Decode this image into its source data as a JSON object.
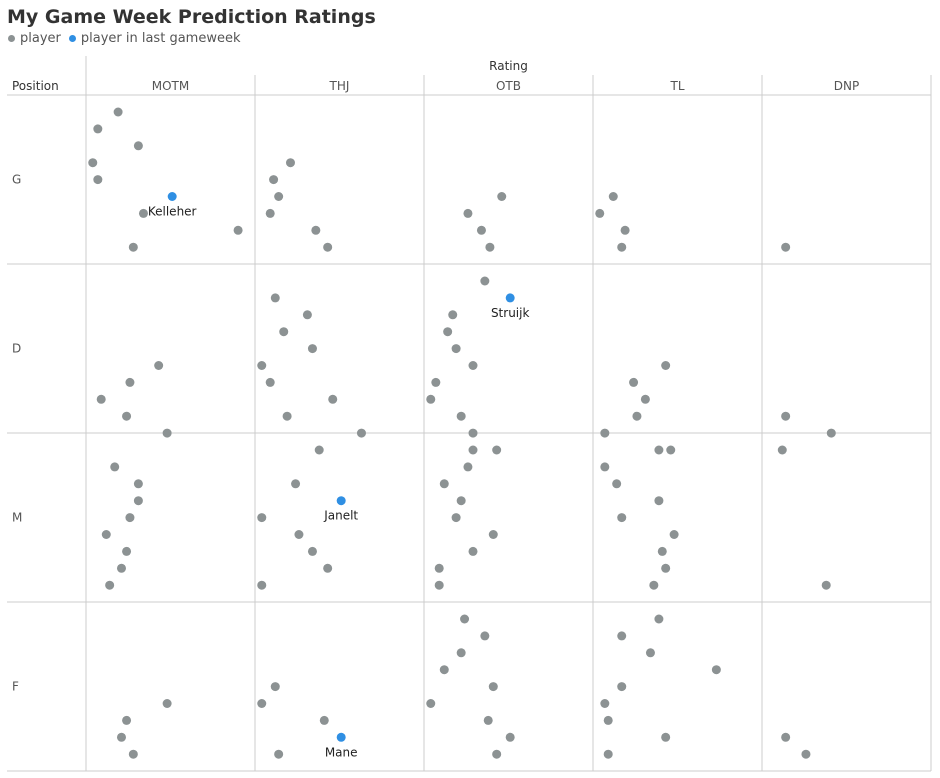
{
  "colors": {
    "player": "#8c9293",
    "last_gameweek": "#2f8fe3",
    "grid": "#cccccc",
    "label": "#555555",
    "title": "#333333"
  },
  "chart_data": {
    "type": "scatter",
    "title": "My Game Week Prediction Ratings",
    "legend": {
      "placement": "top-left",
      "entries": [
        {
          "label": "player",
          "color": "#8c9293"
        },
        {
          "label": "player in last gameweek",
          "color": "#2f8fe3"
        }
      ]
    },
    "column_axis_label": "Rating",
    "row_axis_label": "Position",
    "columns": [
      "MOTM",
      "THJ",
      "OTB",
      "TL",
      "DNP"
    ],
    "rows": [
      "G",
      "D",
      "M",
      "F"
    ],
    "cells": [
      {
        "row": "G",
        "col": "MOTM",
        "points": [
          [
            0.19,
            1
          ],
          [
            0.07,
            2
          ],
          [
            0.31,
            3
          ],
          [
            0.04,
            4
          ],
          [
            0.07,
            5
          ],
          [
            0.34,
            7
          ],
          [
            0.9,
            8
          ],
          [
            0.28,
            9
          ]
        ],
        "highlight": {
          "name": "Kelleher",
          "x": 0.51,
          "y": 6
        }
      },
      {
        "row": "G",
        "col": "THJ",
        "points": [
          [
            0.21,
            4
          ],
          [
            0.11,
            5
          ],
          [
            0.14,
            6
          ],
          [
            0.09,
            7
          ],
          [
            0.36,
            8
          ],
          [
            0.43,
            9
          ]
        ]
      },
      {
        "row": "G",
        "col": "OTB",
        "points": [
          [
            0.46,
            6
          ],
          [
            0.26,
            7
          ],
          [
            0.34,
            8
          ],
          [
            0.39,
            9
          ]
        ]
      },
      {
        "row": "G",
        "col": "TL",
        "points": [
          [
            0.12,
            6
          ],
          [
            0.04,
            7
          ],
          [
            0.19,
            8
          ],
          [
            0.17,
            9
          ]
        ]
      },
      {
        "row": "G",
        "col": "DNP",
        "points": [
          [
            0.14,
            9
          ]
        ]
      },
      {
        "row": "D",
        "col": "MOTM",
        "points": [
          [
            0.43,
            6
          ],
          [
            0.26,
            7
          ],
          [
            0.09,
            8
          ],
          [
            0.24,
            9
          ],
          [
            0.48,
            10
          ]
        ]
      },
      {
        "row": "D",
        "col": "THJ",
        "points": [
          [
            0.12,
            2
          ],
          [
            0.31,
            3
          ],
          [
            0.17,
            4
          ],
          [
            0.34,
            5
          ],
          [
            0.04,
            6
          ],
          [
            0.09,
            7
          ],
          [
            0.46,
            8
          ],
          [
            0.19,
            9
          ],
          [
            0.63,
            10
          ],
          [
            0.38,
            11
          ]
        ]
      },
      {
        "row": "D",
        "col": "OTB",
        "points": [
          [
            0.36,
            1
          ],
          [
            0.17,
            3
          ],
          [
            0.14,
            4
          ],
          [
            0.19,
            5
          ],
          [
            0.29,
            6
          ],
          [
            0.07,
            7
          ],
          [
            0.04,
            8
          ],
          [
            0.22,
            9
          ],
          [
            0.29,
            10
          ],
          [
            0.43,
            11
          ]
        ],
        "highlight": {
          "name": "Struijk",
          "x": 0.51,
          "y": 2
        }
      },
      {
        "row": "D",
        "col": "TL",
        "points": [
          [
            0.43,
            6
          ],
          [
            0.24,
            7
          ],
          [
            0.31,
            8
          ],
          [
            0.26,
            9
          ],
          [
            0.07,
            10
          ],
          [
            0.39,
            11
          ]
        ]
      },
      {
        "row": "D",
        "col": "DNP",
        "points": [
          [
            0.14,
            9
          ],
          [
            0.41,
            10
          ],
          [
            0.12,
            11
          ]
        ]
      },
      {
        "row": "M",
        "col": "MOTM",
        "points": [
          [
            0.17,
            2
          ],
          [
            0.31,
            3
          ],
          [
            0.31,
            4
          ],
          [
            0.26,
            5
          ],
          [
            0.12,
            6
          ],
          [
            0.24,
            7
          ],
          [
            0.21,
            8
          ],
          [
            0.14,
            9
          ]
        ]
      },
      {
        "row": "M",
        "col": "THJ",
        "points": [
          [
            0.24,
            3
          ],
          [
            0.04,
            5
          ],
          [
            0.26,
            6
          ],
          [
            0.34,
            7
          ],
          [
            0.43,
            8
          ],
          [
            0.04,
            9
          ]
        ],
        "highlight": {
          "name": "Janelt",
          "x": 0.51,
          "y": 4
        }
      },
      {
        "row": "M",
        "col": "OTB",
        "points": [
          [
            0.29,
            1
          ],
          [
            0.26,
            2
          ],
          [
            0.12,
            3
          ],
          [
            0.22,
            4
          ],
          [
            0.19,
            5
          ],
          [
            0.41,
            6
          ],
          [
            0.29,
            7
          ],
          [
            0.09,
            8
          ],
          [
            0.09,
            9
          ]
        ]
      },
      {
        "row": "M",
        "col": "TL",
        "points": [
          [
            0.46,
            1
          ],
          [
            0.07,
            2
          ],
          [
            0.14,
            3
          ],
          [
            0.39,
            4
          ],
          [
            0.17,
            5
          ],
          [
            0.48,
            6
          ],
          [
            0.41,
            7
          ],
          [
            0.43,
            8
          ],
          [
            0.36,
            9
          ]
        ]
      },
      {
        "row": "M",
        "col": "DNP",
        "points": [
          [
            0.38,
            9
          ]
        ]
      },
      {
        "row": "F",
        "col": "MOTM",
        "points": [
          [
            0.48,
            6
          ],
          [
            0.24,
            7
          ],
          [
            0.21,
            8
          ],
          [
            0.28,
            9
          ]
        ]
      },
      {
        "row": "F",
        "col": "THJ",
        "points": [
          [
            0.12,
            5
          ],
          [
            0.04,
            6
          ],
          [
            0.41,
            7
          ],
          [
            0.14,
            9
          ]
        ],
        "highlight": {
          "name": "Mane",
          "x": 0.51,
          "y": 8
        }
      },
      {
        "row": "F",
        "col": "OTB",
        "points": [
          [
            0.24,
            1
          ],
          [
            0.36,
            2
          ],
          [
            0.22,
            3
          ],
          [
            0.12,
            4
          ],
          [
            0.41,
            5
          ],
          [
            0.04,
            6
          ],
          [
            0.38,
            7
          ],
          [
            0.51,
            8
          ],
          [
            0.43,
            9
          ]
        ]
      },
      {
        "row": "F",
        "col": "TL",
        "points": [
          [
            0.39,
            1
          ],
          [
            0.17,
            2
          ],
          [
            0.34,
            3
          ],
          [
            0.73,
            4
          ],
          [
            0.17,
            5
          ],
          [
            0.07,
            6
          ],
          [
            0.09,
            7
          ],
          [
            0.43,
            8
          ],
          [
            0.09,
            9
          ]
        ]
      },
      {
        "row": "F",
        "col": "DNP",
        "points": [
          [
            0.14,
            8
          ],
          [
            0.26,
            9
          ]
        ]
      }
    ]
  }
}
